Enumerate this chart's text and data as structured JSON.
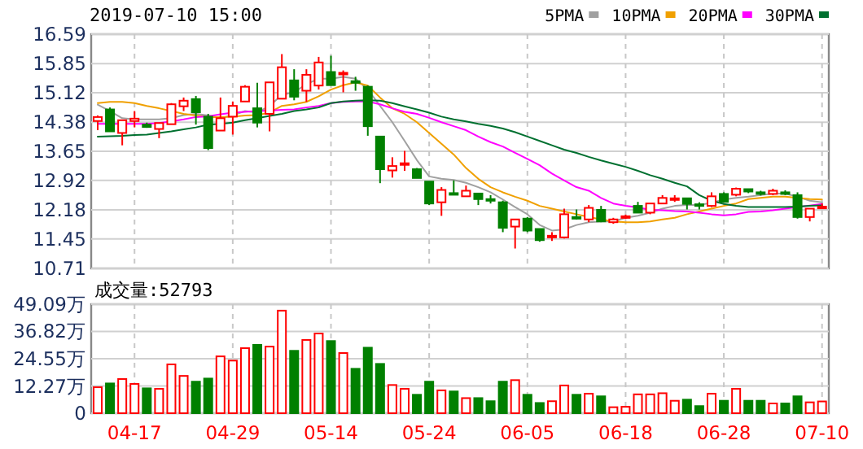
{
  "chart_data": [
    {
      "type": "candlestick",
      "title": "2019-07-10 15:00",
      "categories": [
        null,
        null,
        null,
        null,
        null,
        null,
        null,
        null,
        null,
        null,
        null,
        null,
        null,
        null,
        null,
        null,
        null,
        null,
        null,
        null,
        null,
        null,
        null,
        null,
        null,
        null,
        null,
        null,
        null,
        null,
        null,
        null,
        null,
        null,
        null,
        null,
        null,
        null,
        null,
        null,
        null,
        null,
        null,
        null,
        null,
        null,
        null,
        null,
        null,
        null,
        null,
        null,
        null,
        null,
        null,
        null,
        null,
        null,
        null,
        null
      ],
      "ohlc": [
        [
          14.41,
          14.55,
          14.18,
          14.51
        ],
        [
          14.7,
          14.75,
          14.15,
          14.15
        ],
        [
          14.11,
          14.43,
          13.8,
          14.43
        ],
        [
          14.41,
          14.66,
          14.25,
          14.47
        ],
        [
          14.32,
          14.37,
          14.24,
          14.26
        ],
        [
          14.21,
          14.36,
          13.98,
          14.36
        ],
        [
          14.33,
          14.86,
          14.33,
          14.83
        ],
        [
          14.78,
          15.0,
          14.66,
          14.92
        ],
        [
          14.96,
          15.04,
          14.32,
          14.63
        ],
        [
          14.52,
          14.59,
          13.68,
          13.73
        ],
        [
          14.17,
          15.0,
          14.17,
          14.48
        ],
        [
          14.52,
          14.9,
          14.07,
          14.79
        ],
        [
          14.9,
          15.31,
          14.9,
          15.27
        ],
        [
          14.73,
          15.37,
          14.25,
          14.37
        ],
        [
          14.59,
          15.38,
          14.15,
          15.38
        ],
        [
          14.97,
          16.09,
          14.97,
          15.76
        ],
        [
          15.43,
          15.71,
          14.93,
          15.02
        ],
        [
          15.17,
          15.71,
          14.89,
          15.57
        ],
        [
          15.3,
          16.02,
          15.2,
          15.88
        ],
        [
          15.64,
          16.05,
          15.31,
          15.31
        ],
        [
          15.58,
          15.68,
          15.13,
          15.62
        ],
        [
          15.41,
          15.52,
          15.17,
          15.37
        ],
        [
          15.27,
          15.3,
          14.04,
          14.28
        ],
        [
          14.02,
          14.02,
          12.85,
          13.2
        ],
        [
          13.17,
          13.5,
          12.99,
          13.28
        ],
        [
          13.31,
          13.66,
          13.16,
          13.35
        ],
        [
          13.2,
          13.23,
          12.98,
          12.98
        ],
        [
          12.89,
          12.89,
          12.3,
          12.34
        ],
        [
          12.37,
          12.75,
          12.03,
          12.68
        ],
        [
          12.6,
          12.92,
          12.55,
          12.56
        ],
        [
          12.52,
          12.79,
          12.52,
          12.66
        ],
        [
          12.59,
          12.59,
          12.3,
          12.45
        ],
        [
          12.45,
          12.55,
          12.34,
          12.41
        ],
        [
          12.37,
          12.41,
          11.62,
          11.73
        ],
        [
          11.76,
          11.94,
          11.21,
          11.94
        ],
        [
          11.96,
          12.0,
          11.62,
          11.66
        ],
        [
          11.7,
          11.7,
          11.38,
          11.42
        ],
        [
          11.49,
          11.62,
          11.4,
          11.53
        ],
        [
          11.49,
          12.21,
          11.46,
          12.07
        ],
        [
          12.0,
          12.19,
          11.94,
          11.96
        ],
        [
          11.94,
          12.3,
          11.87,
          12.23
        ],
        [
          12.18,
          12.28,
          11.87,
          11.89
        ],
        [
          11.87,
          11.98,
          11.83,
          11.94
        ],
        [
          11.98,
          12.06,
          11.95,
          12.02
        ],
        [
          12.28,
          12.38,
          12.11,
          12.11
        ],
        [
          12.11,
          12.34,
          12.07,
          12.34
        ],
        [
          12.34,
          12.55,
          12.34,
          12.48
        ],
        [
          12.44,
          12.55,
          12.38,
          12.47
        ],
        [
          12.47,
          12.47,
          12.19,
          12.33
        ],
        [
          12.32,
          12.37,
          12.19,
          12.28
        ],
        [
          12.28,
          12.62,
          12.25,
          12.52
        ],
        [
          12.58,
          12.62,
          12.38,
          12.38
        ],
        [
          12.56,
          12.74,
          12.52,
          12.71
        ],
        [
          12.7,
          12.7,
          12.6,
          12.64
        ],
        [
          12.62,
          12.66,
          12.54,
          12.58
        ],
        [
          12.58,
          12.71,
          12.55,
          12.66
        ],
        [
          12.62,
          12.67,
          12.55,
          12.58
        ],
        [
          12.55,
          12.62,
          11.96,
          12.0
        ],
        [
          12.0,
          12.21,
          11.89,
          12.21
        ],
        [
          12.23,
          12.34,
          12.21,
          12.26
        ]
      ],
      "series": [
        {
          "name": "5PMA",
          "type": "line",
          "color": "#a0a0a0",
          "values": [
            14.82,
            14.66,
            14.48,
            14.45,
            14.45,
            14.45,
            14.48,
            14.56,
            14.59,
            14.55,
            14.49,
            14.55,
            14.66,
            14.62,
            14.79,
            15.07,
            15.13,
            15.34,
            15.47,
            15.47,
            15.52,
            15.47,
            15.2,
            14.79,
            14.38,
            13.91,
            13.43,
            13.02,
            12.96,
            12.93,
            12.86,
            12.75,
            12.62,
            12.44,
            12.25,
            12.07,
            11.8,
            11.66,
            11.69,
            11.8,
            11.87,
            11.89,
            11.89,
            11.98,
            12.03,
            12.11,
            12.21,
            12.28,
            12.3,
            12.3,
            12.36,
            12.44,
            12.48,
            12.51,
            12.55,
            12.59,
            12.59,
            12.51,
            12.41,
            12.37
          ]
        },
        {
          "name": "10PMA",
          "type": "line",
          "color": "#f0a000",
          "values": [
            14.86,
            14.89,
            14.89,
            14.86,
            14.79,
            14.73,
            14.66,
            14.59,
            14.55,
            14.51,
            14.51,
            14.52,
            14.55,
            14.56,
            14.62,
            14.79,
            14.83,
            14.89,
            15.03,
            15.2,
            15.31,
            15.38,
            15.3,
            15.0,
            14.73,
            14.59,
            14.38,
            14.11,
            13.84,
            13.57,
            13.23,
            12.96,
            12.75,
            12.62,
            12.51,
            12.41,
            12.28,
            12.21,
            12.14,
            12.07,
            12.0,
            11.94,
            11.89,
            11.87,
            11.87,
            11.89,
            11.94,
            11.98,
            12.07,
            12.14,
            12.21,
            12.28,
            12.34,
            12.45,
            12.48,
            12.51,
            12.51,
            12.48,
            12.45,
            12.44
          ]
        },
        {
          "name": "20PMA",
          "type": "line",
          "color": "#ff00ff",
          "values": [
            14.34,
            14.34,
            14.34,
            14.34,
            14.34,
            14.36,
            14.4,
            14.45,
            14.51,
            14.53,
            14.58,
            14.62,
            14.64,
            14.66,
            14.67,
            14.69,
            14.7,
            14.75,
            14.79,
            14.86,
            14.89,
            14.9,
            14.9,
            14.83,
            14.73,
            14.64,
            14.59,
            14.49,
            14.38,
            14.28,
            14.18,
            14.02,
            13.88,
            13.77,
            13.61,
            13.46,
            13.3,
            13.09,
            12.92,
            12.75,
            12.66,
            12.48,
            12.34,
            12.28,
            12.24,
            12.18,
            12.17,
            12.15,
            12.14,
            12.11,
            12.07,
            12.04,
            12.07,
            12.13,
            12.14,
            12.17,
            12.21,
            12.25,
            12.29,
            12.33
          ]
        },
        {
          "name": "30PMA",
          "type": "line",
          "color": "#007030",
          "values": [
            14.02,
            14.03,
            14.04,
            14.06,
            14.07,
            14.11,
            14.15,
            14.2,
            14.25,
            14.32,
            14.34,
            14.37,
            14.43,
            14.48,
            14.54,
            14.59,
            14.66,
            14.7,
            14.75,
            14.86,
            14.9,
            14.92,
            14.93,
            14.92,
            14.86,
            14.78,
            14.7,
            14.62,
            14.52,
            14.45,
            14.4,
            14.34,
            14.29,
            14.22,
            14.13,
            14.02,
            13.91,
            13.8,
            13.69,
            13.61,
            13.51,
            13.42,
            13.34,
            13.26,
            13.16,
            13.05,
            12.96,
            12.86,
            12.77,
            12.55,
            12.41,
            12.33,
            12.28,
            12.25,
            12.25,
            12.25,
            12.25,
            12.26,
            12.28,
            12.29
          ]
        }
      ],
      "ylim": [
        10.71,
        16.59
      ],
      "yticks": [
        10.71,
        11.45,
        12.18,
        12.92,
        13.65,
        14.38,
        15.12,
        15.85,
        16.59
      ],
      "grid": true,
      "legend": "top right",
      "tick_labels": "y"
    },
    {
      "type": "bar",
      "title": "成交量:52793",
      "categories": [
        null,
        null,
        null,
        "04-17",
        null,
        null,
        null,
        null,
        null,
        null,
        null,
        "04-29",
        null,
        null,
        null,
        null,
        null,
        null,
        null,
        "05-14",
        null,
        null,
        null,
        null,
        null,
        null,
        null,
        "05-24",
        null,
        null,
        null,
        null,
        null,
        null,
        null,
        "06-05",
        null,
        null,
        null,
        null,
        null,
        null,
        null,
        "06-18",
        null,
        null,
        null,
        null,
        null,
        null,
        null,
        "06-28",
        null,
        null,
        null,
        null,
        null,
        null,
        null,
        "07-10"
      ],
      "values": [
        11.7,
        13.4,
        15.4,
        13.2,
        11.2,
        11.0,
        22.0,
        16.8,
        14.2,
        15.6,
        25.6,
        23.7,
        29.3,
        30.8,
        30.0,
        46.2,
        28.1,
        33.0,
        35.9,
        32.5,
        27.1,
        20.0,
        29.5,
        22.2,
        12.7,
        11.0,
        8.3,
        14.2,
        10.3,
        9.8,
        6.8,
        6.8,
        5.4,
        14.2,
        14.9,
        8.3,
        4.6,
        5.4,
        12.5,
        8.3,
        8.8,
        7.6,
        2.7,
        2.9,
        8.5,
        8.5,
        9.0,
        5.6,
        6.1,
        3.2,
        8.8,
        5.6,
        11.0,
        5.6,
        5.6,
        4.4,
        4.4,
        7.6,
        4.9,
        5.3
      ],
      "colors": [
        "#ff0000",
        "#008000",
        "#ff0000",
        "#ff0000",
        "#008000",
        "#ff0000",
        "#ff0000",
        "#ff0000",
        "#008000",
        "#008000",
        "#ff0000",
        "#ff0000",
        "#ff0000",
        "#008000",
        "#ff0000",
        "#ff0000",
        "#008000",
        "#ff0000",
        "#ff0000",
        "#008000",
        "#ff0000",
        "#008000",
        "#008000",
        "#008000",
        "#ff0000",
        "#ff0000",
        "#008000",
        "#008000",
        "#ff0000",
        "#008000",
        "#ff0000",
        "#008000",
        "#008000",
        "#008000",
        "#ff0000",
        "#008000",
        "#008000",
        "#ff0000",
        "#ff0000",
        "#008000",
        "#ff0000",
        "#008000",
        "#ff0000",
        "#ff0000",
        "#ff0000",
        "#ff0000",
        "#ff0000",
        "#ff0000",
        "#008000",
        "#008000",
        "#ff0000",
        "#008000",
        "#ff0000",
        "#008000",
        "#008000",
        "#ff0000",
        "#008000",
        "#008000",
        "#ff0000",
        "#ff0000"
      ],
      "ylim": [
        0,
        49.09
      ],
      "yticks": [
        0,
        {
          "value": 12.27,
          "label": "12.27万"
        },
        {
          "value": 24.55,
          "label": "24.55万"
        },
        {
          "value": 36.82,
          "label": "36.82万"
        },
        {
          "value": 49.09,
          "label": "49.09万"
        }
      ],
      "grid": true
    }
  ]
}
